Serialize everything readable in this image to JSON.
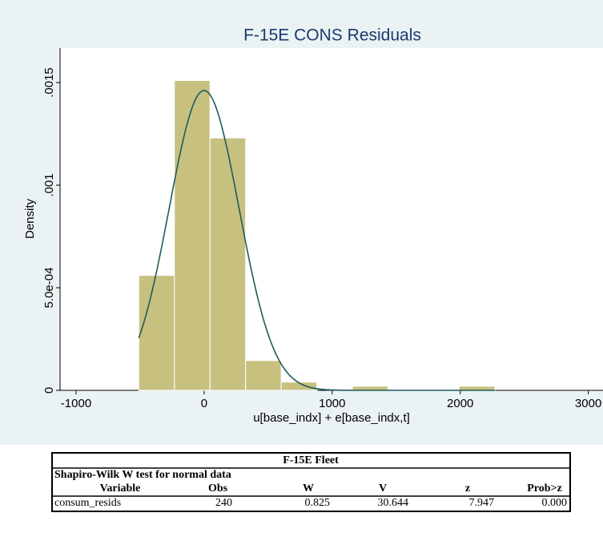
{
  "chart_data": {
    "type": "histogram",
    "title": "F-15E CONS Residuals",
    "x_label": "u[base_indx] + e[base_indx,t]",
    "y_label": "Density",
    "bins": [
      -510,
      -232,
      46,
      324,
      602,
      880,
      1158,
      1436,
      1714,
      1992,
      2270
    ],
    "values": [
      0.00056,
      0.00151,
      0.00123,
      0.000145,
      4e-05,
      0,
      2e-05,
      0,
      0,
      2e-05
    ],
    "color": "#c8c07f",
    "normal_curve": {
      "mean": 0,
      "sd": 273,
      "color": "#1f5c5c"
    },
    "xlim": [
      -1125,
      3115
    ],
    "xticks": [
      -1000,
      0,
      1000,
      2000,
      3000
    ],
    "ylim": [
      0,
      0.001668
    ],
    "yticks": [
      {
        "value": 0,
        "label": "0"
      },
      {
        "value": 0.0005,
        "label": "5.0e-04"
      },
      {
        "value": 0.001,
        "label": ".001"
      },
      {
        "value": 0.0015,
        "label": ".0015"
      }
    ]
  },
  "table": {
    "title": "F-15E Fleet",
    "subtitle": "Shapiro-Wilk W test for normal data",
    "columns": [
      "Variable",
      "Obs",
      "W",
      "V",
      "z",
      "Prob>z"
    ],
    "rows": [
      [
        "consum_resids",
        "240",
        "0.825",
        "30.644",
        "7.947",
        "0.000"
      ]
    ]
  }
}
